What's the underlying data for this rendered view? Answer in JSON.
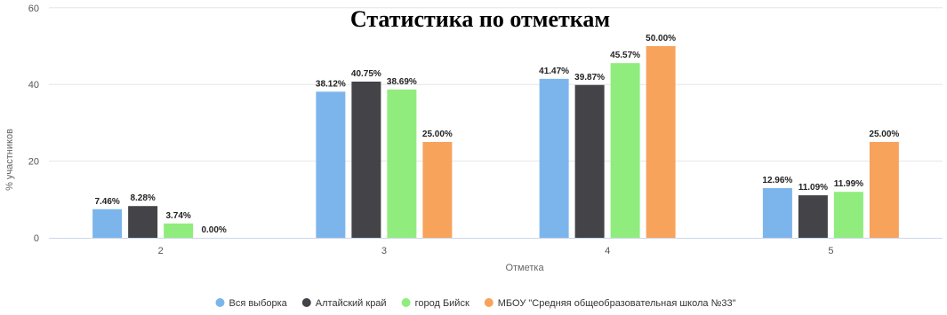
{
  "chart_data": {
    "type": "bar",
    "title": "Статистика по отметкам",
    "xlabel": "Отметка",
    "ylabel": "% участников",
    "categories": [
      "2",
      "3",
      "4",
      "5"
    ],
    "ylim": [
      0,
      60
    ],
    "yticks": [
      0,
      20,
      40,
      60
    ],
    "yticks_visible": [
      "0",
      "20",
      "40",
      "60"
    ],
    "grid": true,
    "legend_position": "bottom",
    "series": [
      {
        "name": "Вся выборка",
        "color": "#7cb5ec",
        "values": [
          7.46,
          38.12,
          41.47,
          12.96
        ],
        "labels": [
          "7.46%",
          "38.12%",
          "41.47%",
          "12.96%"
        ]
      },
      {
        "name": "Алтайский край",
        "color": "#434348",
        "values": [
          8.28,
          40.75,
          39.87,
          11.09
        ],
        "labels": [
          "8.28%",
          "40.75%",
          "39.87%",
          "11.09%"
        ]
      },
      {
        "name": "город Бийск",
        "color": "#90ed7d",
        "values": [
          3.74,
          38.69,
          45.57,
          11.99
        ],
        "labels": [
          "3.74%",
          "38.69%",
          "45.57%",
          "11.99%"
        ]
      },
      {
        "name": "МБОУ \"Средняя общеобразовательная школа №33\"",
        "color": "#f7a35c",
        "values": [
          0.0,
          25.0,
          50.0,
          25.0
        ],
        "labels": [
          "0.00%",
          "25.00%",
          "50.00%",
          "25.00%"
        ]
      }
    ]
  }
}
